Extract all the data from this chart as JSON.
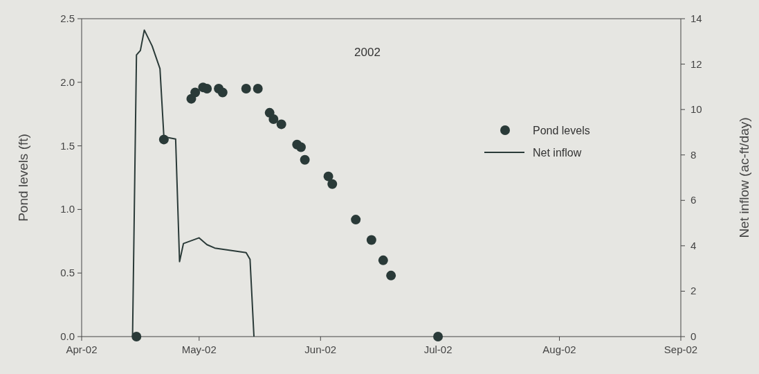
{
  "chart_data": {
    "type": "scatter",
    "annotations": [
      "2002"
    ],
    "ylabel": "Pond levels (ft)",
    "y2label": "Net inflow (ac-ft/day)",
    "xlim": [
      "2002-04-01",
      "2002-09-01"
    ],
    "xticks": [
      {
        "value": "2002-04-01",
        "label": "Apr-02"
      },
      {
        "value": "2002-05-01",
        "label": "May-02"
      },
      {
        "value": "2002-06-01",
        "label": "Jun-02"
      },
      {
        "value": "2002-07-01",
        "label": "Jul-02"
      },
      {
        "value": "2002-08-01",
        "label": "Aug-02"
      },
      {
        "value": "2002-09-01",
        "label": "Sep-02"
      }
    ],
    "ylim": [
      0,
      2.5
    ],
    "yticks": [
      {
        "value": 0,
        "label": "0.0"
      },
      {
        "value": 0.5,
        "label": "0.5"
      },
      {
        "value": 1,
        "label": "1.0"
      },
      {
        "value": 1.5,
        "label": "1.5"
      },
      {
        "value": 2,
        "label": "2.0"
      },
      {
        "value": 2.5,
        "label": "2.5"
      }
    ],
    "y2lim": [
      0,
      14
    ],
    "y2ticks": [
      0,
      2,
      4,
      6,
      8,
      10,
      12,
      14
    ],
    "legend": "right",
    "grid": false,
    "series": [
      {
        "name": "Pond levels",
        "marker": "circle",
        "color": "#2a3a38",
        "x": [
          "2002-04-15",
          "2002-04-22",
          "2002-04-29",
          "2002-04-30",
          "2002-05-02",
          "2002-05-03",
          "2002-05-06",
          "2002-05-07",
          "2002-05-13",
          "2002-05-16",
          "2002-05-19",
          "2002-05-20",
          "2002-05-22",
          "2002-05-26",
          "2002-05-27",
          "2002-05-28",
          "2002-06-03",
          "2002-06-04",
          "2002-06-10",
          "2002-06-14",
          "2002-06-17",
          "2002-06-19",
          "2002-07-01"
        ],
        "values": [
          0,
          1.55,
          1.87,
          1.92,
          1.96,
          1.95,
          1.95,
          1.92,
          1.95,
          1.95,
          1.76,
          1.71,
          1.67,
          1.51,
          1.49,
          1.39,
          1.26,
          1.2,
          0.92,
          0.76,
          0.6,
          0.48,
          0
        ]
      },
      {
        "name": "Net inflow",
        "type": "line",
        "axis": "y2",
        "color": "#2a3a38",
        "x": [
          "2002-04-14",
          "2002-04-15",
          "2002-04-16",
          "2002-04-17",
          "2002-04-19",
          "2002-04-21",
          "2002-04-22",
          "2002-04-25",
          "2002-04-26",
          "2002-04-27",
          "2002-05-01",
          "2002-05-03",
          "2002-05-05",
          "2002-05-09",
          "2002-05-13",
          "2002-05-14",
          "2002-05-15"
        ],
        "values": [
          0,
          12.4,
          12.6,
          13.5,
          12.8,
          11.8,
          8.8,
          8.7,
          3.3,
          4.1,
          4.35,
          4.05,
          3.9,
          3.8,
          3.7,
          3.4,
          0
        ]
      }
    ]
  }
}
